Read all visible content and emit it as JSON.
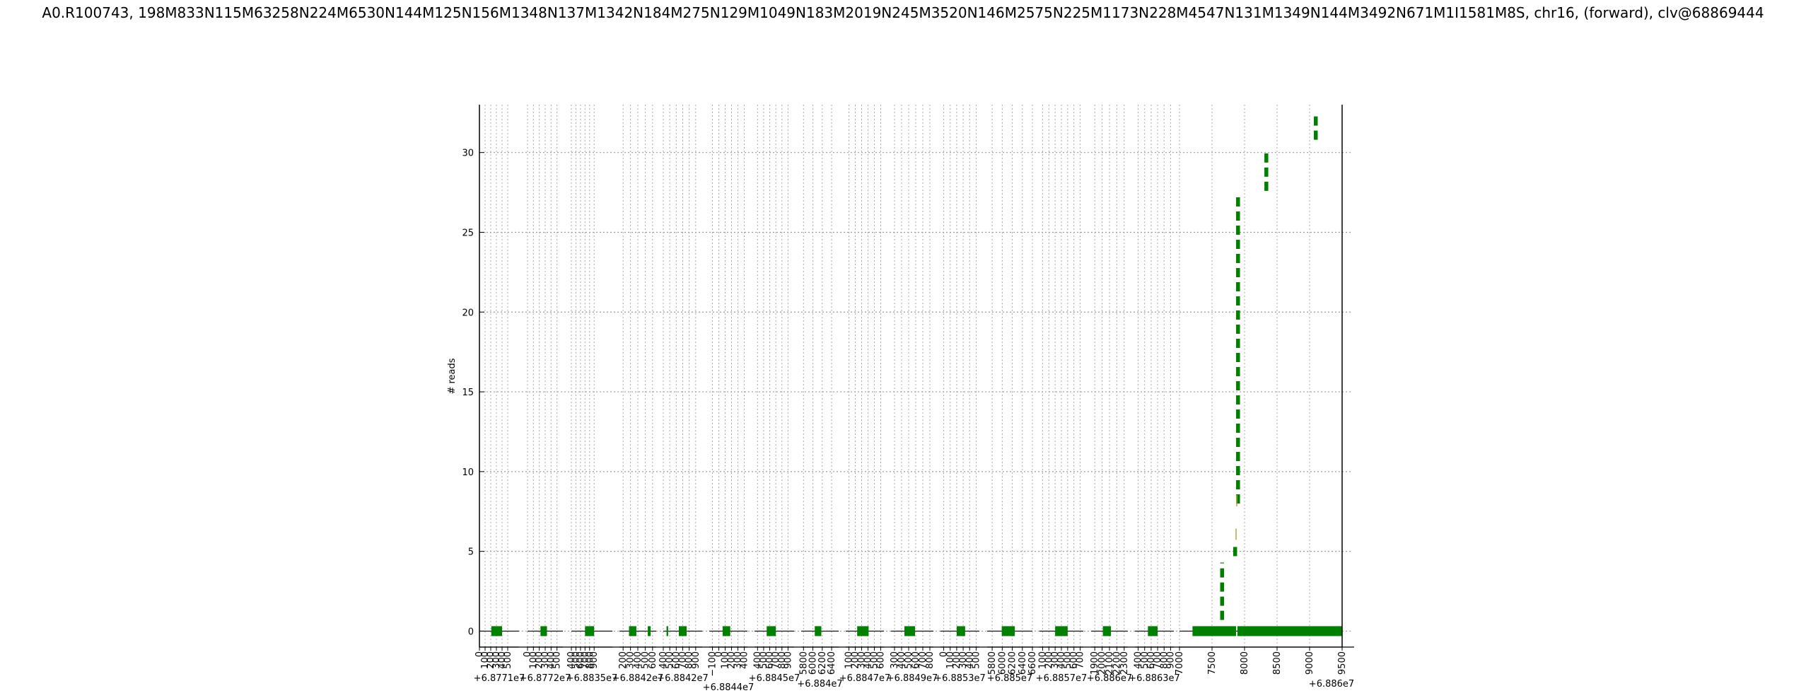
{
  "chart_data": {
    "type": "bar",
    "title": "A0.R100743, 198M833N115M63258N224M6530N144M125N156M1348N137M1342N184M275N129M1049N183M2019N245M3520N146M2575N225M1173N228M4547N131M1349N144M3492N671M1I1581M8S, chr16, (forward), clv@68869444",
    "ylabel": "# reads",
    "ylim": [
      -1,
      33
    ],
    "yticks": [
      0,
      5,
      10,
      15,
      20,
      25,
      30
    ],
    "grid": true,
    "bar_color": "#007f00",
    "panels": [
      {
        "offset": "+6.8771e7",
        "xlim": [
          0,
          700
        ],
        "ticks": [
          "0",
          "100",
          "200",
          "300",
          "400",
          "500"
        ],
        "exons": [
          [
            210,
            400
          ]
        ]
      },
      {
        "offset": "+6.8772e7",
        "xlim": [
          0,
          600
        ],
        "ticks": [
          "0",
          "100",
          "200",
          "300",
          "400",
          "500"
        ],
        "exons": [
          [
            220,
            330
          ]
        ]
      },
      {
        "offset": "+6.8835e7",
        "xlim": [
          400,
          1300
        ],
        "ticks": [
          "400",
          "500",
          "600",
          "700",
          "800",
          "900"
        ],
        "exons": [
          [
            700,
            900
          ]
        ]
      },
      {
        "offset": "+6.8842e7",
        "xlim": [
          150,
          650
        ],
        "ticks": [
          "200",
          "300",
          "400",
          "500",
          "600"
        ],
        "exons": [
          [
            280,
            380
          ],
          [
            535,
            575
          ]
        ]
      },
      {
        "offset": "+6.8842e7",
        "xlim": [
          400,
          1000
        ],
        "ticks": [
          "400",
          "500",
          "600",
          "700",
          "800",
          "900"
        ],
        "exons": [
          [
            450,
            475
          ],
          [
            640,
            760
          ]
        ]
      },
      {
        "offset": "+6.8844e7",
        "xlim": [
          -150,
          450
        ],
        "ticks": [
          "−100",
          "0",
          "100",
          "200",
          "300",
          "400"
        ],
        "exons": [
          [
            60,
            180
          ]
        ]
      },
      {
        "offset": "+6.8845e7",
        "xlim": [
          350,
          1000
        ],
        "ticks": [
          "400",
          "500",
          "600",
          "700",
          "800",
          "900"
        ],
        "exons": [
          [
            550,
            700
          ]
        ]
      },
      {
        "offset": "+6.884e7",
        "xlim": [
          5750,
          6550
        ],
        "ticks": [
          "5800",
          "6000",
          "6200",
          "6400"
        ],
        "exons": [
          [
            6040,
            6180
          ]
        ]
      },
      {
        "offset": "+6.8847e7",
        "xlim": [
          50,
          650
        ],
        "ticks": [
          "100",
          "200",
          "300",
          "400",
          "500",
          "600"
        ],
        "exons": [
          [
            230,
            410
          ]
        ]
      },
      {
        "offset": "+6.8849e7",
        "xlim": [
          250,
          850
        ],
        "ticks": [
          "300",
          "400",
          "500",
          "600",
          "700",
          "800"
        ],
        "exons": [
          [
            440,
            590
          ]
        ]
      },
      {
        "offset": "+6.8853e7",
        "xlim": [
          -50,
          550
        ],
        "ticks": [
          "0",
          "100",
          "200",
          "300",
          "400",
          "500"
        ],
        "exons": [
          [
            200,
            330
          ]
        ]
      },
      {
        "offset": "+6.885e7",
        "xlim": [
          5700,
          6600
        ],
        "ticks": [
          "5800",
          "6000",
          "6200",
          "6400",
          "6600"
        ],
        "exons": [
          [
            5990,
            6250
          ]
        ]
      },
      {
        "offset": "+6.8857e7",
        "xlim": [
          50,
          750
        ],
        "ticks": [
          "100",
          "200",
          "300",
          "400",
          "500",
          "600",
          "700"
        ],
        "exons": [
          [
            300,
            500
          ]
        ]
      },
      {
        "offset": "+6.886e7",
        "xlim": [
          1850,
          2350
        ],
        "ticks": [
          "1900",
          "2000",
          "2100",
          "2200",
          "2300"
        ],
        "exons": [
          [
            2010,
            2120
          ]
        ]
      },
      {
        "offset": "+6.8863e7",
        "xlim": [
          350,
          950
        ],
        "ticks": [
          "400",
          "500",
          "600",
          "700",
          "800",
          "900"
        ],
        "exons": [
          [
            550,
            700
          ]
        ]
      },
      {
        "offset": "+6.886e7",
        "xlim": [
          7000,
          9500
        ],
        "ticks": [
          "7000",
          "7500",
          "8000",
          "8500",
          "9000",
          "9500"
        ],
        "exons": [
          [
            7200,
            7870
          ],
          [
            7890,
            9500
          ]
        ]
      }
    ],
    "dashed_segments": [
      {
        "x": 7655,
        "y0": 0.7,
        "y1": 4.3
      },
      {
        "x": 7855,
        "y0": 4.7,
        "y1": 5.5
      },
      {
        "x": 7900,
        "y0": 8.0,
        "y1": 27.3
      },
      {
        "x": 8335,
        "y0": 27.6,
        "y1": 30.2
      },
      {
        "x": 9095,
        "y0": 30.8,
        "y1": 32.3
      }
    ],
    "minor_ticks": [
      {
        "x": 7870,
        "y": 5.9
      },
      {
        "x": 7880,
        "y": 8.0
      }
    ]
  }
}
